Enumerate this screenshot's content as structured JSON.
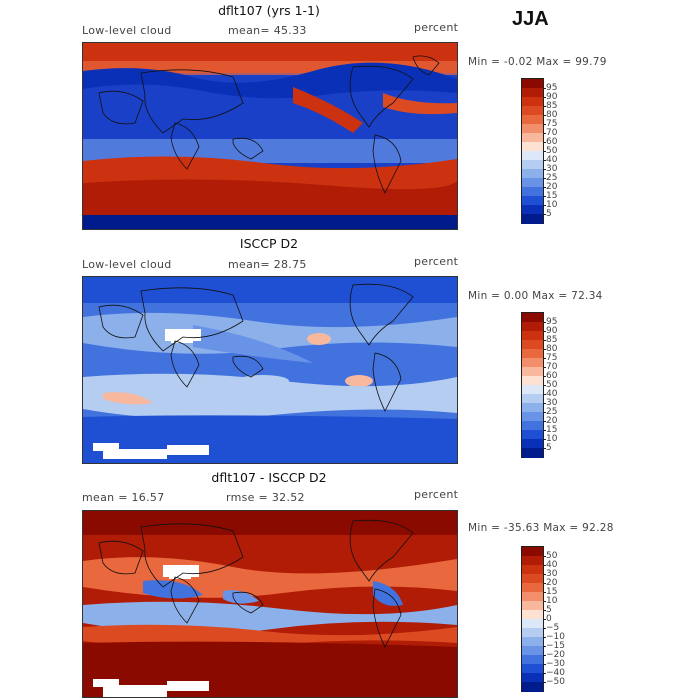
{
  "season": "JJA",
  "panels": [
    {
      "title": "dflt107 (yrs 1-1)",
      "left_label": "Low-level cloud",
      "mid_label": "mean=  45.33",
      "right_label": "percent",
      "minmax": "Min =   -0.02  Max =  99.79",
      "colorbar_labels": [
        "95",
        "90",
        "85",
        "80",
        "75",
        "70",
        "60",
        "50",
        "40",
        "30",
        "25",
        "20",
        "15",
        "10",
        "5"
      ],
      "colorbar_colors": [
        "#8b0a00",
        "#b01c05",
        "#cc3210",
        "#dc4a22",
        "#e9683e",
        "#f28e6c",
        "#f8b89e",
        "#fde2d4",
        "#dce8f8",
        "#b5cdf0",
        "#8cb0ea",
        "#6993e6",
        "#4272de",
        "#1f4fd2",
        "#0a30b8",
        "#001c8c"
      ]
    },
    {
      "title": "ISCCP D2",
      "left_label": "Low-level cloud",
      "mid_label": "mean=  28.75",
      "right_label": "percent",
      "minmax": "Min =    0.00  Max =  72.34",
      "colorbar_labels": [
        "95",
        "90",
        "85",
        "80",
        "75",
        "70",
        "60",
        "50",
        "40",
        "30",
        "25",
        "20",
        "15",
        "10",
        "5"
      ],
      "colorbar_colors": [
        "#8b0a00",
        "#b01c05",
        "#cc3210",
        "#dc4a22",
        "#e9683e",
        "#f28e6c",
        "#f8b89e",
        "#fde2d4",
        "#dce8f8",
        "#b5cdf0",
        "#8cb0ea",
        "#6993e6",
        "#4272de",
        "#1f4fd2",
        "#0a30b8",
        "#001c8c"
      ]
    },
    {
      "title": "dflt107 - ISCCP D2",
      "left_label": "mean =   16.57",
      "mid_label": "rmse =   32.52",
      "right_label": "percent",
      "minmax": "Min =  -35.63  Max =  92.28",
      "colorbar_labels": [
        "50",
        "40",
        "30",
        "20",
        "15",
        "10",
        "5",
        "0",
        "−5",
        "−10",
        "−15",
        "−20",
        "−30",
        "−40",
        "−50"
      ],
      "colorbar_colors": [
        "#8b0a00",
        "#b01c05",
        "#cc3210",
        "#dc4a22",
        "#e9683e",
        "#f28e6c",
        "#f8b89e",
        "#fde2d4",
        "#dce8f8",
        "#b5cdf0",
        "#8cb0ea",
        "#6993e6",
        "#4272de",
        "#1f4fd2",
        "#0a30b8",
        "#001c8c"
      ]
    }
  ],
  "chart_data": [
    {
      "type": "heatmap",
      "title": "dflt107 (yrs 1-1)",
      "variable": "Low-level cloud",
      "units": "percent",
      "mean": 45.33,
      "min": -0.02,
      "max": 99.79,
      "season": "JJA",
      "contour_levels": [
        5,
        10,
        15,
        20,
        25,
        30,
        40,
        50,
        60,
        70,
        75,
        80,
        85,
        90,
        95
      ]
    },
    {
      "type": "heatmap",
      "title": "ISCCP D2",
      "variable": "Low-level cloud",
      "units": "percent",
      "mean": 28.75,
      "min": 0.0,
      "max": 72.34,
      "season": "JJA",
      "contour_levels": [
        5,
        10,
        15,
        20,
        25,
        30,
        40,
        50,
        60,
        70,
        75,
        80,
        85,
        90,
        95
      ]
    },
    {
      "type": "heatmap",
      "title": "dflt107 - ISCCP D2",
      "units": "percent",
      "mean": 16.57,
      "rmse": 32.52,
      "min": -35.63,
      "max": 92.28,
      "season": "JJA",
      "contour_levels": [
        -50,
        -40,
        -30,
        -20,
        -15,
        -10,
        -5,
        0,
        5,
        10,
        15,
        20,
        30,
        40,
        50
      ]
    }
  ]
}
